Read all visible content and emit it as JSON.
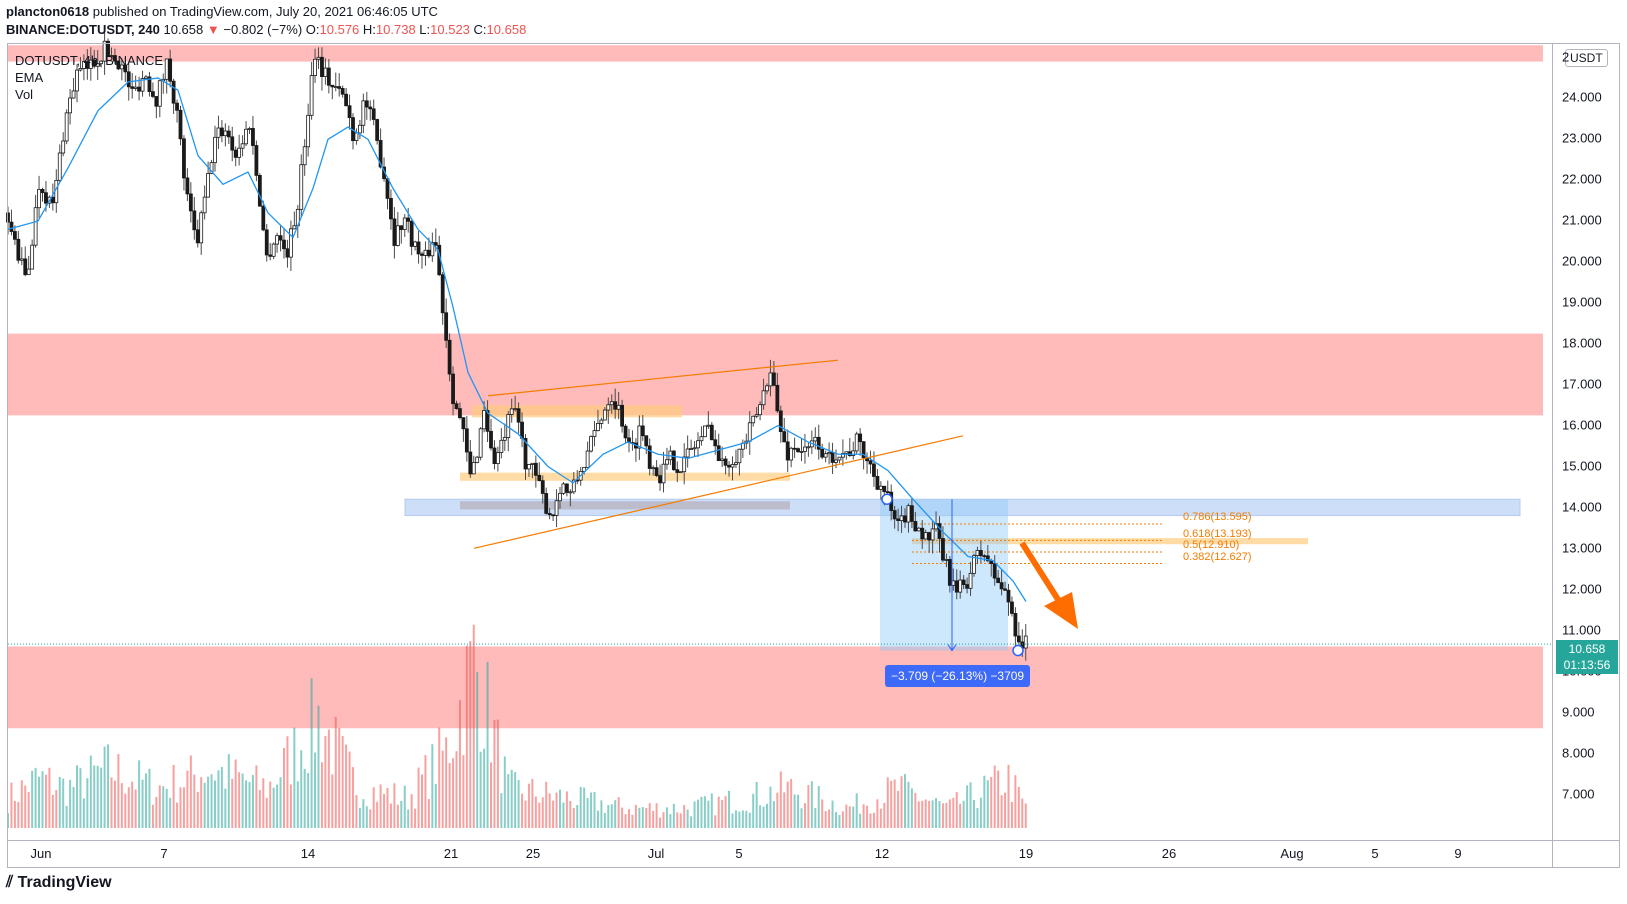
{
  "header": {
    "author": "plancton0618",
    "published": "published on TradingView.com, July 20, 2021 06:46:05 UTC",
    "symbol": "BINANCE:DOTUSDT, 240",
    "last": "10.658",
    "change": "−0.802 (−7%)",
    "ohlc": {
      "o_label": "O:",
      "o": "10.576",
      "h_label": "H:",
      "h": "10.738",
      "l_label": "L:",
      "l": "10.523",
      "c_label": "C:",
      "c": "10.658"
    }
  },
  "legend": {
    "symbol_line": "DOTUSDT, 4h, BINANCE",
    "ema": "EMA",
    "vol": "Vol"
  },
  "axis": {
    "unit": "USDT",
    "y_ticks": [
      "2",
      "24.000",
      "23.000",
      "22.000",
      "21.000",
      "20.000",
      "19.000",
      "18.000",
      "17.000",
      "16.000",
      "15.000",
      "14.000",
      "13.000",
      "12.000",
      "11.000",
      "10.000",
      "9.000",
      "8.000",
      "7.000"
    ],
    "x_ticks": [
      "Jun",
      "7",
      "14",
      "21",
      "25",
      "Jul",
      "5",
      "12",
      "19",
      "26",
      "Aug",
      "5",
      "9"
    ]
  },
  "price_tag": {
    "price": "10.658",
    "countdown": "01:13:56"
  },
  "measure": {
    "label": "−3.709 (−26.13%) −3709"
  },
  "fib": [
    "0.786(13.595)",
    "0.618(13.193)",
    "0.5(12.910)",
    "0.382(12.627)"
  ],
  "logo": "TradingView",
  "colors": {
    "up": "#26a69a",
    "down": "#ef5350",
    "ema": "#2196f3",
    "zone": "#ffb3b3",
    "measure": "#90caf9",
    "annotation": "#f57c00",
    "arrow": "#ff6d00"
  },
  "chart_data": {
    "type": "candlestick",
    "symbol": "DOTUSDT",
    "ylim": [
      6,
      25.3
    ],
    "zones_usdt": [
      [
        24.9,
        25.3
      ],
      [
        16.25,
        18.25
      ],
      [
        8.6,
        10.6
      ]
    ],
    "measure_usdt": {
      "from": 14.2,
      "to": 10.5,
      "change": -3.709,
      "percent": -26.13
    },
    "price_path": [
      [
        0,
        21.2
      ],
      [
        10,
        20.5
      ],
      [
        22,
        19.5
      ],
      [
        35,
        22.0
      ],
      [
        48,
        21.3
      ],
      [
        60,
        23.4
      ],
      [
        72,
        24.6
      ],
      [
        85,
        24.8
      ],
      [
        100,
        25.2
      ],
      [
        115,
        24.9
      ],
      [
        128,
        24.1
      ],
      [
        140,
        24.6
      ],
      [
        152,
        24.0
      ],
      [
        163,
        24.9
      ],
      [
        172,
        23.7
      ],
      [
        182,
        21.6
      ],
      [
        192,
        20.4
      ],
      [
        200,
        21.5
      ],
      [
        210,
        23.0
      ],
      [
        220,
        23.3
      ],
      [
        232,
        22.6
      ],
      [
        245,
        23.4
      ],
      [
        255,
        21.6
      ],
      [
        262,
        20.1
      ],
      [
        272,
        20.7
      ],
      [
        282,
        20.2
      ],
      [
        292,
        21.2
      ],
      [
        300,
        22.9
      ],
      [
        310,
        25.2
      ],
      [
        318,
        24.7
      ],
      [
        328,
        24.3
      ],
      [
        340,
        24.0
      ],
      [
        350,
        23.0
      ],
      [
        360,
        24.0
      ],
      [
        370,
        23.2
      ],
      [
        380,
        22.1
      ],
      [
        390,
        20.6
      ],
      [
        400,
        21.1
      ],
      [
        410,
        20.4
      ],
      [
        420,
        20.0
      ],
      [
        430,
        20.7
      ],
      [
        440,
        18.5
      ],
      [
        448,
        16.8
      ],
      [
        458,
        15.9
      ],
      [
        466,
        14.7
      ],
      [
        472,
        15.3
      ],
      [
        480,
        16.5
      ],
      [
        488,
        15.1
      ],
      [
        496,
        15.4
      ],
      [
        504,
        16.1
      ],
      [
        512,
        16.4
      ],
      [
        520,
        15.2
      ],
      [
        530,
        14.8
      ],
      [
        540,
        14.1
      ],
      [
        548,
        13.8
      ],
      [
        556,
        14.6
      ],
      [
        566,
        14.3
      ],
      [
        576,
        14.9
      ],
      [
        586,
        15.5
      ],
      [
        596,
        16.2
      ],
      [
        606,
        16.8
      ],
      [
        616,
        16.3
      ],
      [
        626,
        15.3
      ],
      [
        636,
        16.0
      ],
      [
        646,
        15.1
      ],
      [
        656,
        14.8
      ],
      [
        666,
        15.2
      ],
      [
        676,
        15.0
      ],
      [
        686,
        15.4
      ],
      [
        696,
        15.7
      ],
      [
        706,
        16.0
      ],
      [
        716,
        15.0
      ],
      [
        726,
        15.2
      ],
      [
        736,
        15.4
      ],
      [
        746,
        15.9
      ],
      [
        756,
        16.5
      ],
      [
        766,
        17.5
      ],
      [
        774,
        16.1
      ],
      [
        782,
        15.3
      ],
      [
        792,
        15.5
      ],
      [
        802,
        15.3
      ],
      [
        812,
        15.7
      ],
      [
        822,
        15.1
      ],
      [
        832,
        15.4
      ],
      [
        842,
        15.3
      ],
      [
        852,
        15.6
      ],
      [
        862,
        15.2
      ],
      [
        872,
        14.7
      ],
      [
        882,
        14.3
      ],
      [
        892,
        13.4
      ],
      [
        902,
        13.9
      ],
      [
        912,
        13.6
      ],
      [
        922,
        13.2
      ],
      [
        932,
        13.4
      ],
      [
        942,
        12.5
      ],
      [
        952,
        11.9
      ],
      [
        962,
        12.2
      ],
      [
        972,
        12.8
      ],
      [
        980,
        12.9
      ],
      [
        988,
        12.4
      ],
      [
        998,
        12.0
      ],
      [
        1006,
        11.6
      ],
      [
        1012,
        10.9
      ],
      [
        1018,
        10.66
      ]
    ],
    "ema_path": [
      [
        0,
        20.8
      ],
      [
        30,
        21.0
      ],
      [
        60,
        22.3
      ],
      [
        90,
        23.7
      ],
      [
        120,
        24.4
      ],
      [
        150,
        24.5
      ],
      [
        170,
        24.2
      ],
      [
        190,
        22.6
      ],
      [
        215,
        21.9
      ],
      [
        240,
        22.2
      ],
      [
        260,
        21.2
      ],
      [
        285,
        20.6
      ],
      [
        305,
        21.8
      ],
      [
        320,
        23.0
      ],
      [
        340,
        23.3
      ],
      [
        360,
        23.0
      ],
      [
        385,
        21.8
      ],
      [
        410,
        20.8
      ],
      [
        430,
        20.3
      ],
      [
        445,
        18.9
      ],
      [
        460,
        17.3
      ],
      [
        480,
        16.3
      ],
      [
        510,
        15.8
      ],
      [
        540,
        15.0
      ],
      [
        565,
        14.6
      ],
      [
        595,
        15.3
      ],
      [
        620,
        15.6
      ],
      [
        650,
        15.3
      ],
      [
        680,
        15.2
      ],
      [
        710,
        15.4
      ],
      [
        740,
        15.6
      ],
      [
        770,
        16.0
      ],
      [
        800,
        15.6
      ],
      [
        830,
        15.3
      ],
      [
        855,
        15.3
      ],
      [
        880,
        14.9
      ],
      [
        905,
        14.2
      ],
      [
        935,
        13.4
      ],
      [
        960,
        12.8
      ],
      [
        985,
        12.7
      ],
      [
        1005,
        12.2
      ],
      [
        1018,
        11.7
      ]
    ],
    "volume_path": [
      [
        0,
        0.3
      ],
      [
        30,
        0.5
      ],
      [
        60,
        0.4
      ],
      [
        100,
        0.6
      ],
      [
        150,
        0.4
      ],
      [
        180,
        0.5
      ],
      [
        200,
        0.6
      ],
      [
        260,
        0.4
      ],
      [
        310,
        1.1
      ],
      [
        350,
        0.4
      ],
      [
        400,
        0.3
      ],
      [
        440,
        0.8
      ],
      [
        466,
        1.7
      ],
      [
        500,
        0.4
      ],
      [
        560,
        0.3
      ],
      [
        620,
        0.2
      ],
      [
        680,
        0.2
      ],
      [
        740,
        0.3
      ],
      [
        780,
        0.4
      ],
      [
        840,
        0.2
      ],
      [
        890,
        0.4
      ],
      [
        940,
        0.2
      ],
      [
        1000,
        0.5
      ],
      [
        1018,
        0.2
      ]
    ],
    "triangle": {
      "upper": [
        [
          480,
          16.73
        ],
        [
          830,
          17.6
        ]
      ],
      "lower": [
        [
          466,
          13.0
        ],
        [
          955,
          15.75
        ]
      ]
    },
    "fib_levels": [
      13.595,
      13.193,
      12.91,
      12.627
    ],
    "last_price": 10.658
  }
}
